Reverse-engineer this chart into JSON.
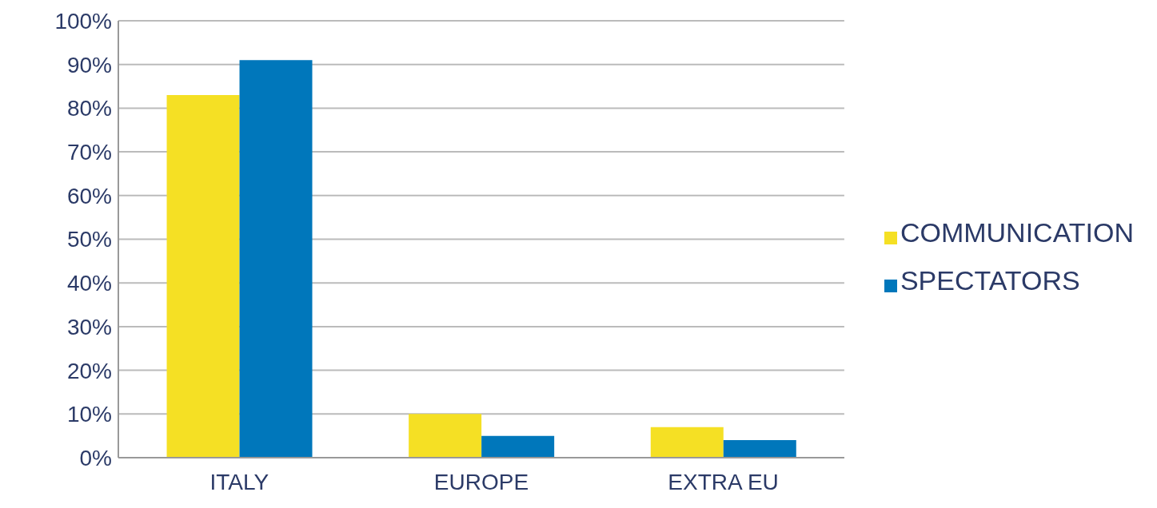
{
  "chart_data": {
    "type": "bar",
    "categories": [
      "ITALY",
      "EUROPE",
      "EXTRA EU"
    ],
    "series": [
      {
        "name": "COMMUNICATION",
        "color": "#f5e024",
        "values": [
          83,
          10,
          7
        ]
      },
      {
        "name": "SPECTATORS",
        "color": "#0077bb",
        "values": [
          91,
          5,
          4
        ]
      }
    ],
    "ylim": [
      0,
      100
    ],
    "yticks": [
      {
        "value": 0,
        "label": "0%"
      },
      {
        "value": 10,
        "label": "10%"
      },
      {
        "value": 20,
        "label": "20%"
      },
      {
        "value": 30,
        "label": "30%"
      },
      {
        "value": 40,
        "label": "40%"
      },
      {
        "value": 50,
        "label": "50%"
      },
      {
        "value": 60,
        "label": "60%"
      },
      {
        "value": 70,
        "label": "70%"
      },
      {
        "value": 80,
        "label": "80%"
      },
      {
        "value": 90,
        "label": "90%"
      },
      {
        "value": 100,
        "label": "100%"
      }
    ],
    "grid": "y",
    "legend": "right"
  }
}
